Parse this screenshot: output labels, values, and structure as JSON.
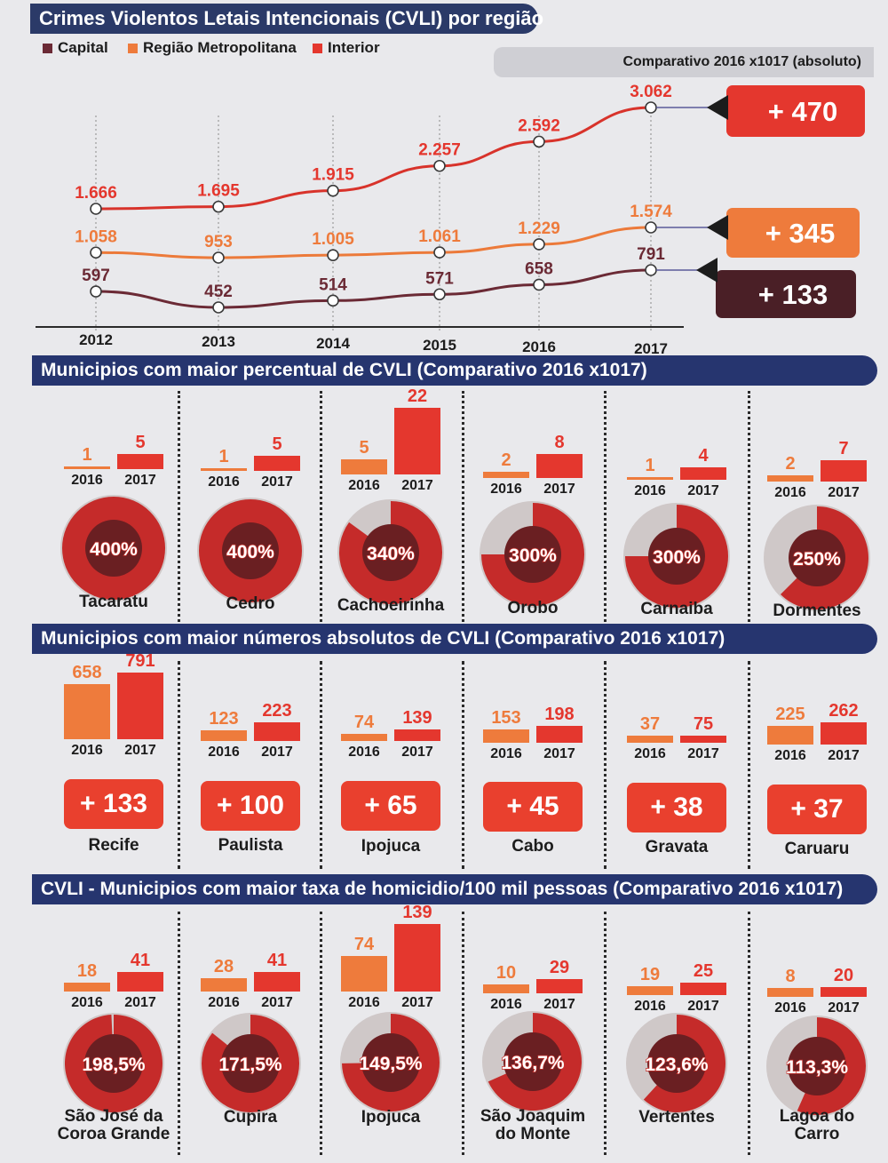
{
  "line_section": {
    "title": "Crimes Violentos Letais Intencionais (CVLI) por região",
    "legend": [
      {
        "label": "Capital",
        "color": "#6b2a35"
      },
      {
        "label": "Região Metropolitana",
        "color": "#ee7b3c"
      },
      {
        "label": "Interior",
        "color": "#e4372e"
      }
    ],
    "comparativo_label": "Comparativo 2016 x1017 (absoluto)",
    "deltas": [
      {
        "label": "+ 470",
        "color": "#e4372e"
      },
      {
        "label": "+ 345",
        "color": "#ee7b3c"
      },
      {
        "label": "+ 133",
        "color": "#4a1f26"
      }
    ]
  },
  "sections": {
    "percentual_title": "Municipios com maior percentual de  CVLI (Comparativo 2016 x1017)",
    "absolutos_title": "Municipios com maior números absolutos de CVLI (Comparativo 2016 x1017)",
    "taxa_title": "CVLI - Municipios com maior taxa de homicidio/100 mil pessoas (Comparativo 2016 x1017)"
  },
  "chart_data": [
    {
      "type": "line",
      "title": "Crimes Violentos Letais Intencionais (CVLI) por região",
      "x": [
        "2012",
        "2013",
        "2014",
        "2015",
        "2016",
        "2017"
      ],
      "series": [
        {
          "name": "Interior",
          "values": [
            1666,
            1695,
            1915,
            2257,
            2592,
            3062
          ],
          "labels": [
            "1.666",
            "1.695",
            "1.915",
            "2.257",
            "2.592",
            "3.062"
          ]
        },
        {
          "name": "Região Metropolitana",
          "values": [
            1058,
            953,
            1005,
            1061,
            1229,
            1574
          ],
          "labels": [
            "1.058",
            "953",
            "1.005",
            "1.061",
            "1.229",
            "1.574"
          ]
        },
        {
          "name": "Capital",
          "values": [
            597,
            452,
            514,
            571,
            658,
            791
          ],
          "labels": [
            "597",
            "452",
            "514",
            "571",
            "658",
            "791"
          ]
        }
      ]
    },
    {
      "type": "bar",
      "title": "Municipios com maior percentual de  CVLI (Comparativo 2016 x1017)",
      "categories": [
        "Tacaratu",
        "Cedro",
        "Cachoeirinha",
        "Orobo",
        "Carnaiba",
        "Dormentes"
      ],
      "years": [
        "2016",
        "2017"
      ],
      "series": [
        {
          "name": "2016",
          "values": [
            1,
            1,
            5,
            2,
            1,
            2
          ]
        },
        {
          "name": "2017",
          "values": [
            5,
            5,
            22,
            8,
            4,
            7
          ]
        }
      ],
      "percent_labels": [
        "400%",
        "400%",
        "340%",
        "300%",
        "300%",
        "250%"
      ],
      "percent_values": [
        400,
        400,
        340,
        300,
        300,
        250
      ]
    },
    {
      "type": "bar",
      "title": "Municipios com maior números absolutos de CVLI (Comparativo 2016 x1017)",
      "categories": [
        "Recife",
        "Paulista",
        "Ipojuca",
        "Cabo",
        "Gravata",
        "Caruaru"
      ],
      "years": [
        "2016",
        "2017"
      ],
      "series": [
        {
          "name": "2016",
          "values": [
            658,
            123,
            74,
            153,
            37,
            225
          ]
        },
        {
          "name": "2017",
          "values": [
            791,
            223,
            139,
            198,
            75,
            262
          ]
        }
      ],
      "delta_labels": [
        "+ 133",
        "+ 100",
        "+ 65",
        "+ 45",
        "+ 38",
        "+ 37"
      ]
    },
    {
      "type": "bar",
      "title": "CVLI - Municipios com maior taxa de homicidio/100 mil pessoas (Comparativo 2016 x1017)",
      "categories": [
        "São José da Coroa Grande",
        "Cupira",
        "Ipojuca",
        "São Joaquim do Monte",
        "Vertentes",
        "Lagoa do Carro"
      ],
      "category_lines": [
        [
          "São José da",
          "Coroa Grande"
        ],
        [
          "Cupira"
        ],
        [
          "Ipojuca"
        ],
        [
          "São Joaquim",
          "do Monte"
        ],
        [
          "Vertentes"
        ],
        [
          "Lagoa do",
          "Carro"
        ]
      ],
      "years": [
        "2016",
        "2017"
      ],
      "series": [
        {
          "name": "2016",
          "values": [
            18,
            28,
            74,
            10,
            19,
            8
          ]
        },
        {
          "name": "2017",
          "values": [
            41,
            41,
            139,
            29,
            25,
            20
          ]
        }
      ],
      "percent_labels": [
        "198,5%",
        "171,5%",
        "149,5%",
        "136,7%",
        "123,6%",
        "113,3%"
      ],
      "percent_values": [
        198.5,
        171.5,
        149.5,
        136.7,
        123.6,
        113.3
      ]
    }
  ]
}
